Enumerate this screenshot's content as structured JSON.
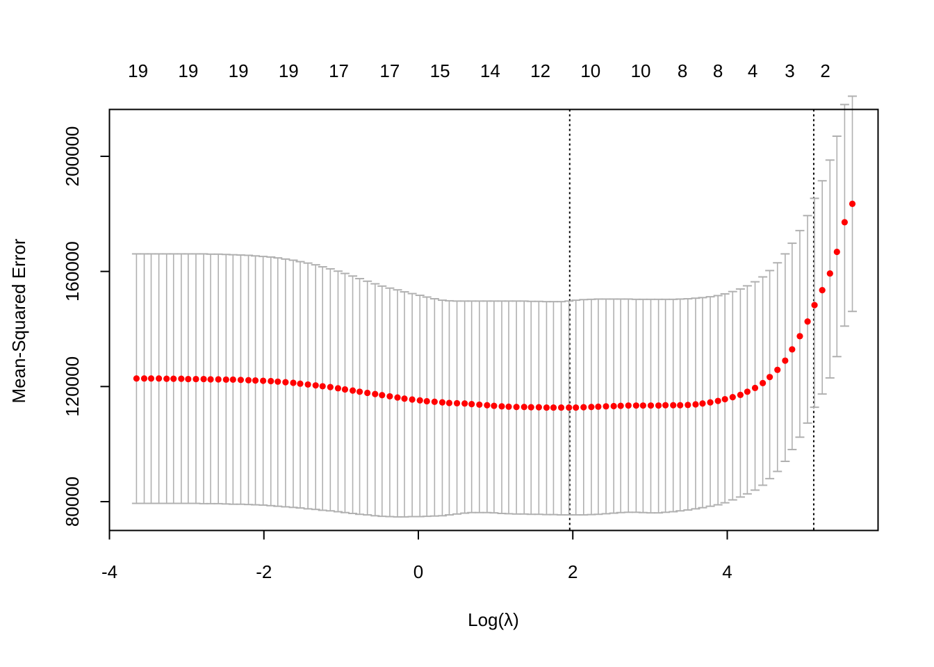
{
  "chart_data": {
    "type": "scatter",
    "title": "",
    "xlabel": "Log(λ)",
    "ylabel": "Mean-Squared Error",
    "xlim": [
      -4,
      6
    ],
    "ylim": [
      70000,
      216000
    ],
    "x_ticks": [
      -4,
      -2,
      0,
      2,
      4
    ],
    "x_tick_labels": [
      "-4",
      "-2",
      "0",
      "2",
      "4"
    ],
    "y_ticks": [
      80000,
      120000,
      160000,
      200000
    ],
    "y_tick_labels": [
      "80000",
      "120000",
      "160000",
      "200000"
    ],
    "top_axis": {
      "label": "",
      "positions": [
        -3.63,
        -2.98,
        -2.33,
        -1.68,
        -1.03,
        -0.37,
        0.28,
        0.93,
        1.58,
        2.23,
        2.88,
        3.42,
        3.88,
        4.33,
        4.81,
        5.27
      ],
      "labels": [
        "19",
        "19",
        "19",
        "19",
        "17",
        "17",
        "15",
        "14",
        "12",
        "10",
        "10",
        "8",
        "8",
        "4",
        "3",
        "2"
      ]
    },
    "vlines": [
      1.96,
      5.12
    ],
    "x_start": -3.65,
    "x_step": 0.0965,
    "series": [
      {
        "name": "",
        "color": "#ff0000",
        "error_bar_color": "#b0b0b0",
        "x": [
          -3.65,
          -3.55,
          -3.46,
          -3.36,
          -3.26,
          -3.17,
          -3.07,
          -2.98,
          -2.88,
          -2.78,
          -2.69,
          -2.59,
          -2.49,
          -2.4,
          -2.3,
          -2.2,
          -2.11,
          -2.01,
          -1.91,
          -1.82,
          -1.72,
          -1.62,
          -1.53,
          -1.43,
          -1.33,
          -1.24,
          -1.14,
          -1.04,
          -0.95,
          -0.85,
          -0.76,
          -0.66,
          -0.56,
          -0.47,
          -0.37,
          -0.27,
          -0.18,
          -0.08,
          0.02,
          0.11,
          0.21,
          0.31,
          0.4,
          0.5,
          0.6,
          0.69,
          0.79,
          0.89,
          0.98,
          1.08,
          1.17,
          1.27,
          1.37,
          1.46,
          1.56,
          1.66,
          1.75,
          1.85,
          1.95,
          2.04,
          2.14,
          2.24,
          2.33,
          2.43,
          2.53,
          2.62,
          2.72,
          2.82,
          2.91,
          3.01,
          3.11,
          3.2,
          3.3,
          3.39,
          3.49,
          3.59,
          3.68,
          3.78,
          3.88,
          3.97,
          4.07,
          4.17,
          4.26,
          4.36,
          4.46,
          4.55,
          4.65,
          4.75,
          4.84,
          4.94,
          5.04,
          5.13,
          5.23,
          5.33,
          5.42,
          5.52,
          5.62
        ],
        "y": [
          122800,
          122800,
          122800,
          122800,
          122700,
          122700,
          122700,
          122600,
          122600,
          122600,
          122500,
          122500,
          122400,
          122400,
          122300,
          122200,
          122100,
          122000,
          121900,
          121700,
          121500,
          121300,
          121000,
          120700,
          120400,
          120100,
          119800,
          119400,
          119000,
          118600,
          118200,
          117800,
          117400,
          117000,
          116600,
          116200,
          115800,
          115500,
          115200,
          114900,
          114700,
          114500,
          114300,
          114200,
          114100,
          113900,
          113700,
          113500,
          113300,
          113100,
          113000,
          112900,
          112900,
          112800,
          112800,
          112700,
          112700,
          112700,
          112700,
          112700,
          112800,
          112900,
          113000,
          113100,
          113200,
          113300,
          113400,
          113400,
          113400,
          113400,
          113400,
          113500,
          113500,
          113500,
          113600,
          113800,
          114100,
          114500,
          115000,
          115600,
          116300,
          117100,
          118200,
          119500,
          121200,
          123300,
          125800,
          129000,
          132900,
          137500,
          142600,
          148300,
          153500,
          159300,
          166800,
          177100,
          183500
        ],
        "upper": [
          166100,
          166100,
          166100,
          166100,
          166100,
          166100,
          166100,
          166100,
          166100,
          166100,
          166000,
          166000,
          165900,
          165800,
          165700,
          165600,
          165400,
          165200,
          165000,
          164700,
          164300,
          163900,
          163400,
          162900,
          162300,
          161600,
          160900,
          160100,
          159300,
          158400,
          157500,
          156600,
          155700,
          154900,
          154200,
          153600,
          152900,
          152300,
          151700,
          151100,
          150500,
          150000,
          149800,
          149700,
          149700,
          149700,
          149700,
          149700,
          149700,
          149700,
          149700,
          149700,
          149700,
          149600,
          149600,
          149500,
          149500,
          149500,
          149700,
          150000,
          150200,
          150300,
          150400,
          150400,
          150400,
          150400,
          150400,
          150300,
          150300,
          150300,
          150300,
          150300,
          150300,
          150400,
          150500,
          150700,
          150900,
          151200,
          151600,
          152200,
          153000,
          153900,
          155000,
          156400,
          158100,
          160300,
          163000,
          166100,
          169800,
          174200,
          179400,
          185400,
          191500,
          198700,
          207000,
          218000,
          220900
        ],
        "lower": [
          79400,
          79400,
          79400,
          79400,
          79400,
          79400,
          79400,
          79400,
          79400,
          79300,
          79300,
          79300,
          79200,
          79100,
          79100,
          79000,
          78900,
          78800,
          78600,
          78400,
          78200,
          78000,
          77800,
          77500,
          77300,
          77000,
          76800,
          76500,
          76200,
          75900,
          75600,
          75400,
          75100,
          74900,
          74800,
          74700,
          74700,
          74800,
          74800,
          74900,
          75000,
          75100,
          75400,
          75700,
          76000,
          76200,
          76200,
          76200,
          76100,
          75900,
          75800,
          75700,
          75700,
          75600,
          75600,
          75500,
          75500,
          75400,
          75400,
          75400,
          75400,
          75500,
          75600,
          75800,
          76000,
          76200,
          76300,
          76300,
          76200,
          76100,
          76100,
          76300,
          76500,
          76800,
          77100,
          77500,
          77900,
          78400,
          78900,
          79600,
          80600,
          81600,
          82700,
          84000,
          85700,
          88000,
          90500,
          94000,
          98100,
          102400,
          107300,
          112800,
          117400,
          123000,
          130400,
          141000,
          146100
        ]
      }
    ]
  }
}
